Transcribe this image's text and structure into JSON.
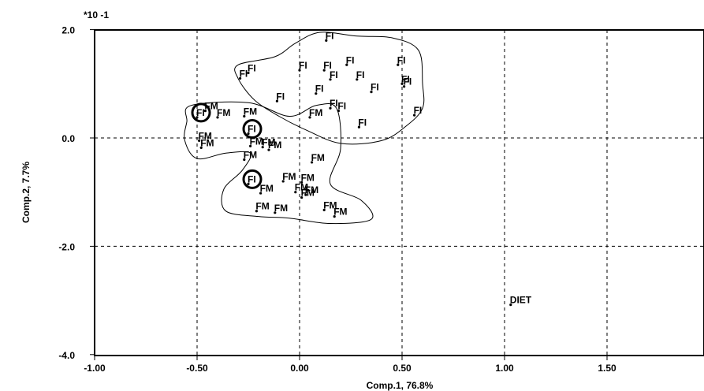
{
  "chart_data": {
    "type": "scatter",
    "title": "",
    "xlabel": "Comp.1, 76.8%",
    "ylabel": "Comp.2, 7.7%",
    "y_multiplier_label": "*10 -1",
    "xlim": [
      -1.0,
      2.0
    ],
    "ylim": [
      -4.0,
      2.0
    ],
    "x_ticks": [
      -1.0,
      -0.5,
      0.0,
      0.5,
      1.0,
      1.5
    ],
    "x_tick_labels": [
      "-1.00",
      "-0.50",
      "0.00",
      "0.50",
      "1.00",
      "1.50"
    ],
    "y_ticks": [
      2.0,
      0.0,
      -2.0,
      -4.0
    ],
    "y_tick_labels": [
      "2.0",
      "0.0",
      "-2.0",
      "-4.0"
    ],
    "grid": true,
    "points": [
      {
        "label": "FI",
        "x": 0.13,
        "y": 1.8
      },
      {
        "label": "FI",
        "x": -0.29,
        "y": 1.1
      },
      {
        "label": "FI",
        "x": -0.25,
        "y": 1.2
      },
      {
        "label": "FI",
        "x": 0.0,
        "y": 1.25
      },
      {
        "label": "FI",
        "x": 0.12,
        "y": 1.25
      },
      {
        "label": "FI",
        "x": 0.23,
        "y": 1.35
      },
      {
        "label": "FI",
        "x": 0.48,
        "y": 1.35
      },
      {
        "label": "FI",
        "x": 0.15,
        "y": 1.08
      },
      {
        "label": "FI",
        "x": 0.28,
        "y": 1.08
      },
      {
        "label": "FI",
        "x": 0.5,
        "y": 1.0
      },
      {
        "label": "FI",
        "x": 0.51,
        "y": 0.95
      },
      {
        "label": "FI",
        "x": 0.08,
        "y": 0.82
      },
      {
        "label": "FI",
        "x": 0.35,
        "y": 0.85
      },
      {
        "label": "FI",
        "x": -0.11,
        "y": 0.68
      },
      {
        "label": "FI",
        "x": 0.15,
        "y": 0.55
      },
      {
        "label": "FI",
        "x": 0.19,
        "y": 0.5
      },
      {
        "label": "FI",
        "x": 0.56,
        "y": 0.42
      },
      {
        "label": "FI",
        "x": 0.29,
        "y": 0.2
      },
      {
        "label": "FI",
        "x": -0.5,
        "y": 0.38
      },
      {
        "label": "FI",
        "x": -0.25,
        "y": 0.08
      },
      {
        "label": "FI",
        "x": -0.25,
        "y": -0.85
      },
      {
        "label": "FM",
        "x": -0.46,
        "y": 0.5
      },
      {
        "label": "FM",
        "x": -0.4,
        "y": 0.38
      },
      {
        "label": "FM",
        "x": -0.27,
        "y": 0.4
      },
      {
        "label": "FM",
        "x": 0.05,
        "y": 0.38
      },
      {
        "label": "FM",
        "x": -0.49,
        "y": -0.05
      },
      {
        "label": "FM",
        "x": -0.48,
        "y": -0.18
      },
      {
        "label": "FM",
        "x": -0.24,
        "y": -0.15
      },
      {
        "label": "FM",
        "x": -0.18,
        "y": -0.17
      },
      {
        "label": "FM",
        "x": -0.15,
        "y": -0.22
      },
      {
        "label": "FM",
        "x": -0.27,
        "y": -0.4
      },
      {
        "label": "FM",
        "x": 0.06,
        "y": -0.45
      },
      {
        "label": "FM",
        "x": -0.08,
        "y": -0.8
      },
      {
        "label": "FM",
        "x": 0.01,
        "y": -0.82
      },
      {
        "label": "FM",
        "x": -0.19,
        "y": -1.02
      },
      {
        "label": "FM",
        "x": -0.02,
        "y": -1.0
      },
      {
        "label": "FM",
        "x": 0.01,
        "y": -1.1
      },
      {
        "label": "FM",
        "x": 0.03,
        "y": -1.05
      },
      {
        "label": "FM",
        "x": -0.21,
        "y": -1.35
      },
      {
        "label": "FM",
        "x": -0.12,
        "y": -1.38
      },
      {
        "label": "FM",
        "x": 0.12,
        "y": -1.33
      },
      {
        "label": "FM",
        "x": 0.17,
        "y": -1.45
      },
      {
        "label": "DIET",
        "x": 1.03,
        "y": -3.08
      }
    ],
    "circled_points": [
      18,
      19,
      20
    ],
    "hulls": [
      {
        "name": "FI",
        "path": [
          [
            0.1,
            1.95
          ],
          [
            0.28,
            1.88
          ],
          [
            0.45,
            1.85
          ],
          [
            0.58,
            1.62
          ],
          [
            0.6,
            1.0
          ],
          [
            0.6,
            0.55
          ],
          [
            0.52,
            0.22
          ],
          [
            0.4,
            -0.05
          ],
          [
            0.2,
            -0.1
          ],
          [
            0.03,
            0.15
          ],
          [
            -0.1,
            0.4
          ],
          [
            -0.22,
            0.7
          ],
          [
            -0.3,
            1.1
          ],
          [
            -0.3,
            1.35
          ],
          [
            -0.12,
            1.5
          ],
          [
            -0.02,
            1.75
          ]
        ]
      },
      {
        "name": "FM",
        "path": [
          [
            -0.53,
            0.6
          ],
          [
            -0.25,
            0.65
          ],
          [
            -0.05,
            0.4
          ],
          [
            0.08,
            0.6
          ],
          [
            0.18,
            0.55
          ],
          [
            0.2,
            -0.2
          ],
          [
            0.15,
            -0.85
          ],
          [
            0.3,
            -1.15
          ],
          [
            0.35,
            -1.5
          ],
          [
            0.15,
            -1.58
          ],
          [
            -0.05,
            -1.48
          ],
          [
            -0.2,
            -1.45
          ],
          [
            -0.36,
            -1.35
          ],
          [
            -0.37,
            -0.95
          ],
          [
            -0.28,
            -0.6
          ],
          [
            -0.24,
            -0.28
          ],
          [
            -0.36,
            -0.28
          ],
          [
            -0.5,
            -0.38
          ],
          [
            -0.56,
            -0.05
          ],
          [
            -0.55,
            0.3
          ]
        ]
      }
    ]
  }
}
